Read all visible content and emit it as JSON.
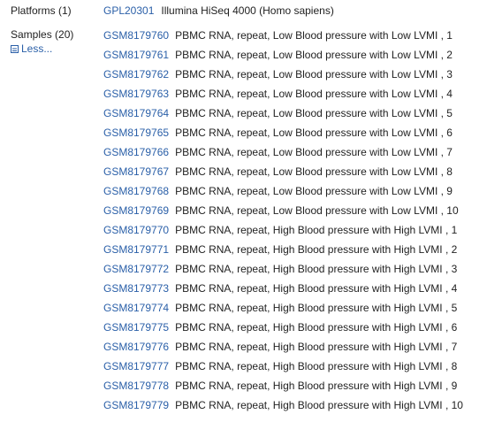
{
  "platforms": {
    "label": "Platforms (1)",
    "accession": "GPL20301",
    "description": "Illumina HiSeq 4000 (Homo sapiens)"
  },
  "samples": {
    "label": "Samples (20)",
    "less_label": "Less...",
    "less_icon": "collapse-icon",
    "link_color": "#2a5fa8",
    "items": [
      {
        "accession": "GSM8179760",
        "description": "PBMC RNA, repeat, Low Blood pressure with Low LVMI , 1"
      },
      {
        "accession": "GSM8179761",
        "description": "PBMC RNA, repeat, Low Blood pressure with Low LVMI , 2"
      },
      {
        "accession": "GSM8179762",
        "description": "PBMC RNA, repeat, Low Blood pressure with Low LVMI , 3"
      },
      {
        "accession": "GSM8179763",
        "description": "PBMC RNA, repeat, Low Blood pressure with Low LVMI , 4"
      },
      {
        "accession": "GSM8179764",
        "description": "PBMC RNA, repeat, Low Blood pressure with Low LVMI , 5"
      },
      {
        "accession": "GSM8179765",
        "description": "PBMC RNA, repeat, Low Blood pressure with Low LVMI , 6"
      },
      {
        "accession": "GSM8179766",
        "description": "PBMC RNA, repeat, Low Blood pressure with Low LVMI , 7"
      },
      {
        "accession": "GSM8179767",
        "description": "PBMC RNA, repeat, Low Blood pressure with Low LVMI , 8"
      },
      {
        "accession": "GSM8179768",
        "description": "PBMC RNA, repeat, Low Blood pressure with Low LVMI , 9"
      },
      {
        "accession": "GSM8179769",
        "description": "PBMC RNA, repeat, Low Blood pressure with Low LVMI , 10"
      },
      {
        "accession": "GSM8179770",
        "description": "PBMC RNA, repeat, High Blood pressure with High LVMI , 1"
      },
      {
        "accession": "GSM8179771",
        "description": "PBMC RNA, repeat, High Blood pressure with High LVMI , 2"
      },
      {
        "accession": "GSM8179772",
        "description": "PBMC RNA, repeat, High Blood pressure with High LVMI , 3"
      },
      {
        "accession": "GSM8179773",
        "description": "PBMC RNA, repeat, High Blood pressure with High LVMI , 4"
      },
      {
        "accession": "GSM8179774",
        "description": "PBMC RNA, repeat, High Blood pressure with High LVMI , 5"
      },
      {
        "accession": "GSM8179775",
        "description": "PBMC RNA, repeat, High Blood pressure with High LVMI , 6"
      },
      {
        "accession": "GSM8179776",
        "description": "PBMC RNA, repeat, High Blood pressure with High LVMI , 7"
      },
      {
        "accession": "GSM8179777",
        "description": "PBMC RNA, repeat, High Blood pressure with High LVMI , 8"
      },
      {
        "accession": "GSM8179778",
        "description": "PBMC RNA, repeat, High Blood pressure with High LVMI , 9"
      },
      {
        "accession": "GSM8179779",
        "description": "PBMC RNA, repeat, High Blood pressure with High LVMI , 10"
      }
    ]
  }
}
